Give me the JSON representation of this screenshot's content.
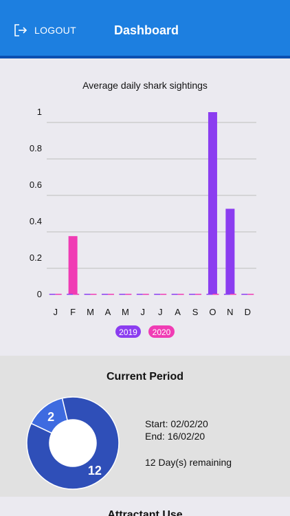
{
  "header": {
    "logout_label": "LOGOUT",
    "title": "Dashboard",
    "icon": "logout-icon"
  },
  "colors": {
    "header_bg": "#1d7fe0",
    "series_2019": "#8b3df0",
    "series_2020": "#f03cb4",
    "donut_dark": "#2f4fb8",
    "donut_light": "#3e6be0"
  },
  "chart_data": {
    "type": "bar",
    "title": "Average daily shark sightings",
    "categories": [
      "J",
      "F",
      "M",
      "A",
      "M",
      "J",
      "J",
      "A",
      "S",
      "O",
      "N",
      "D"
    ],
    "series": [
      {
        "name": "2019",
        "values": [
          0,
          0,
          0,
          0,
          0,
          0,
          0,
          0,
          0,
          1,
          0.47,
          0
        ]
      },
      {
        "name": "2020",
        "values": [
          0,
          0.32,
          0,
          0,
          0,
          0,
          0,
          0,
          0,
          0,
          0,
          0
        ]
      }
    ],
    "y_ticks": [
      "0",
      "0.2",
      "0.4",
      "0.6",
      "0.8",
      "1"
    ],
    "ylim": [
      0,
      1
    ],
    "grid": true,
    "legend_position": "bottom-center"
  },
  "current_period": {
    "title": "Current Period",
    "start_text": "Start: 02/02/20",
    "end_text": "End: 16/02/20",
    "remaining_text": "12 Day(s) remaining",
    "donut": [
      {
        "label": "2",
        "value": 2
      },
      {
        "label": "12",
        "value": 12
      }
    ]
  },
  "attractant": {
    "title": "Attractant Use"
  }
}
